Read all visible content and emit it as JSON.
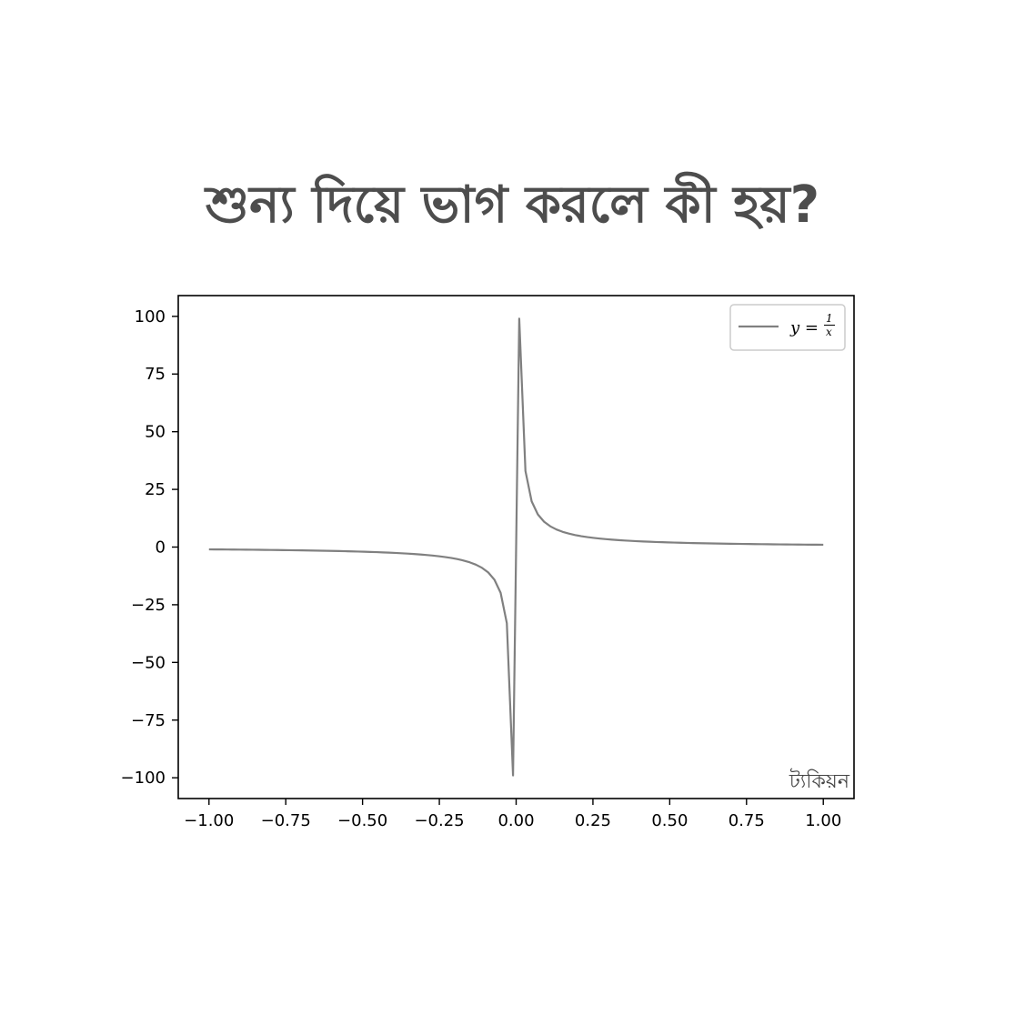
{
  "title": "শুন্য দিয়ে ভাগ করলে কী হয়?",
  "watermark": "ট্যকিয়ন",
  "colors": {
    "line": "#808080",
    "axes": "#000000",
    "title": "#4d4d4d",
    "legend_border": "#cccccc"
  },
  "chart_data": {
    "type": "line",
    "title": "",
    "xlabel": "",
    "ylabel": "",
    "xlim": [
      -1.1,
      1.1
    ],
    "ylim": [
      -109,
      109
    ],
    "grid": false,
    "legend_position": "upper right",
    "x_ticks": [
      -1.0,
      -0.75,
      -0.5,
      -0.25,
      0.0,
      0.25,
      0.5,
      0.75,
      1.0
    ],
    "x_tick_labels": [
      "−1.00",
      "−0.75",
      "−0.50",
      "−0.25",
      "0.00",
      "0.25",
      "0.50",
      "0.75",
      "1.00"
    ],
    "y_ticks": [
      100,
      75,
      50,
      25,
      0,
      -25,
      -50,
      -75,
      -100
    ],
    "y_tick_labels": [
      "100",
      "75",
      "50",
      "25",
      "0",
      "−25",
      "−50",
      "−75",
      "−100"
    ],
    "series": [
      {
        "name": "y = 1/x",
        "legend_lhs": "y =",
        "legend_num": "1",
        "legend_den": "x",
        "function": "1/x",
        "x_start": -1.0,
        "x_end": 1.0,
        "num_points": 100
      }
    ]
  }
}
